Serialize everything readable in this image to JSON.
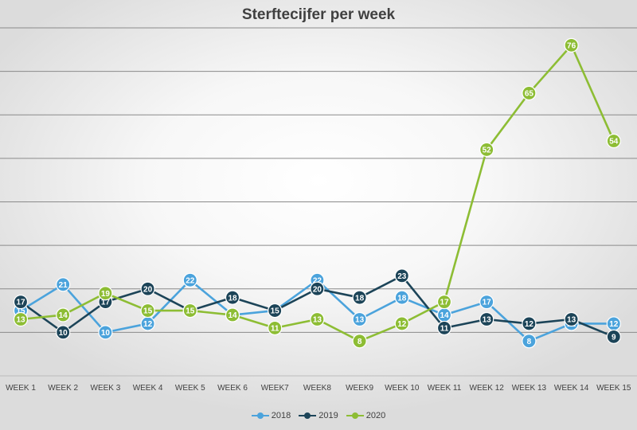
{
  "chart_data": {
    "type": "line",
    "title": "Sterftecijfer per week",
    "xlabel": "",
    "ylabel": "",
    "ylim": [
      0,
      80
    ],
    "grid": true,
    "legend_position": "bottom",
    "categories": [
      "WEEK 1",
      "WEEK 2",
      "WEEK 3",
      "WEEK 4",
      "WEEK 5",
      "WEEK 6",
      "WEEK7",
      "WEEK8",
      "WEEK9",
      "WEEK 10",
      "WEEK 11",
      "WEEK 12",
      "WEEK 13",
      "WEEK 14",
      "WEEK 15"
    ],
    "series": [
      {
        "name": "2018",
        "color": "#4ba3dc",
        "values": [
          15,
          21,
          10,
          12,
          22,
          14,
          15,
          22,
          13,
          18,
          14,
          17,
          8,
          12,
          12
        ]
      },
      {
        "name": "2019",
        "color": "#1c4458",
        "values": [
          17,
          10,
          17,
          20,
          15,
          18,
          15,
          20,
          18,
          23,
          11,
          13,
          12,
          13,
          9
        ]
      },
      {
        "name": "2020",
        "color": "#8dbd34",
        "values": [
          13,
          14,
          19,
          15,
          15,
          14,
          11,
          13,
          8,
          12,
          17,
          52,
          65,
          76,
          54
        ]
      }
    ]
  }
}
